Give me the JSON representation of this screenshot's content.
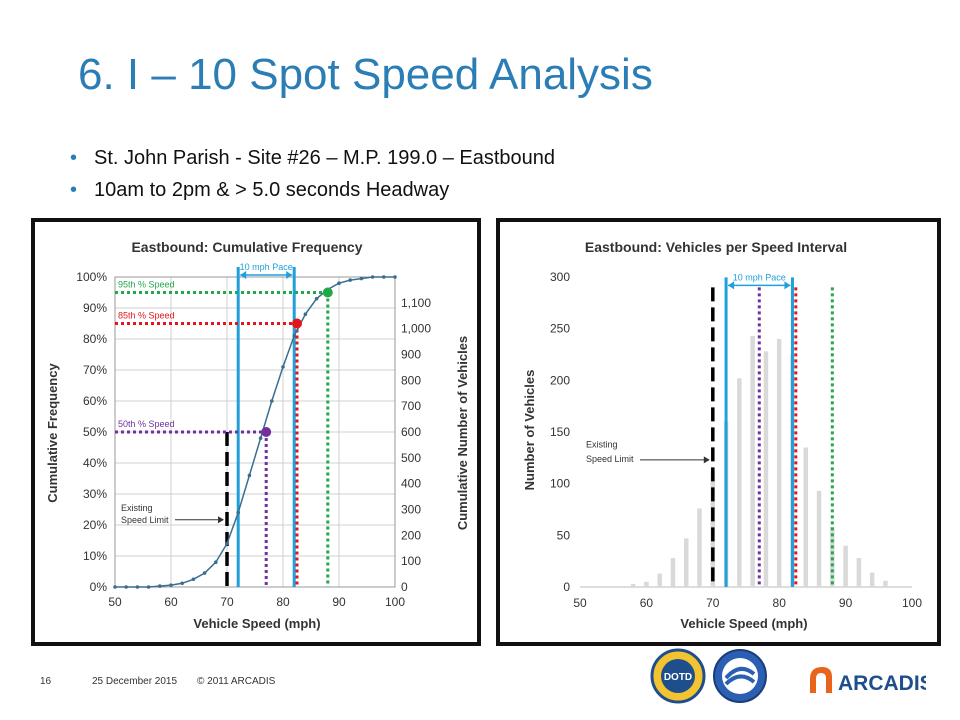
{
  "slide": {
    "title": "6. I – 10 Spot Speed Analysis",
    "bullets": [
      "St. John Parish - Site #26 – M.P. 199.0 – Eastbound",
      "10am to 2pm & > 5.0 seconds Headway"
    ],
    "footer": {
      "page_number": "16",
      "date": "25 December 2015",
      "copyright": "© 2011 ARCADIS"
    },
    "logos": {
      "arcadis": "ARCADIS",
      "dotd": "DOTD"
    }
  },
  "colors": {
    "title": "#2a7db5",
    "curve": "#3a6e8f",
    "pace": "#1fa0dc",
    "p95": "#22a84a",
    "p85": "#e4141b",
    "p50": "#7030a0",
    "limit": "#000000",
    "bars": "#d9d9d9",
    "arcadis_orange": "#e8641b",
    "arcadis_blue": "#1f4e8c"
  },
  "chart_data": [
    {
      "type": "line",
      "title": "Eastbound: Cumulative Frequency",
      "xlabel": "Vehicle Speed (mph)",
      "ylabel": "Cumulative Frequency",
      "y2label": "Cumulative Number of Vehicles",
      "xlim": [
        50,
        100
      ],
      "ylim": [
        0,
        100
      ],
      "y2lim": [
        0,
        1200
      ],
      "x_ticks": [
        "50",
        "60",
        "70",
        "80",
        "90",
        "100"
      ],
      "y_ticks": [
        "0%",
        "10%",
        "20%",
        "30%",
        "40%",
        "50%",
        "60%",
        "70%",
        "80%",
        "90%",
        "100%"
      ],
      "y2_ticks": [
        "0",
        "100",
        "200",
        "300",
        "400",
        "500",
        "600",
        "700",
        "800",
        "900",
        "1,000",
        "1,100"
      ],
      "grid": true,
      "series": [
        {
          "x": [
            50,
            52,
            54,
            56,
            58,
            60,
            62,
            64,
            66,
            68,
            70,
            72,
            74,
            76,
            78,
            80,
            82,
            84,
            86,
            88,
            90,
            92,
            94,
            96,
            98,
            100
          ],
          "y": [
            0,
            0,
            0,
            0,
            0.3,
            0.6,
            1.2,
            2.5,
            4.5,
            8,
            14,
            24,
            36,
            48,
            60,
            71,
            81,
            88,
            93,
            96,
            98,
            99,
            99.5,
            100,
            100,
            100
          ]
        }
      ],
      "annotations": [
        {
          "label": "95th % Speed",
          "percent": 95,
          "speed": 88,
          "color": "p95"
        },
        {
          "label": "85th % Speed",
          "percent": 85,
          "speed": 82.5,
          "color": "p85"
        },
        {
          "label": "50th % Speed",
          "percent": 50,
          "speed": 77,
          "color": "p50"
        },
        {
          "label": "10 mph Pace",
          "from": 72,
          "to": 82
        },
        {
          "label": "Existing Speed Limit",
          "speed": 70
        }
      ]
    },
    {
      "type": "bar",
      "title": "Eastbound: Vehicles per Speed Interval",
      "xlabel": "Vehicle Speed (mph)",
      "ylabel": "Number of Vehicles",
      "xlim": [
        50,
        100
      ],
      "ylim": [
        0,
        300
      ],
      "x_ticks": [
        "50",
        "60",
        "70",
        "80",
        "90",
        "100"
      ],
      "y_ticks": [
        "0",
        "50",
        "100",
        "150",
        "200",
        "250",
        "300"
      ],
      "grid": false,
      "x": [
        58,
        60,
        62,
        64,
        66,
        68,
        70,
        72,
        74,
        76,
        78,
        80,
        82,
        84,
        86,
        88,
        90,
        92,
        94,
        96
      ],
      "values": [
        3,
        5,
        13,
        28,
        47,
        76,
        112,
        160,
        202,
        243,
        228,
        240,
        225,
        135,
        93,
        58,
        40,
        28,
        14,
        6
      ],
      "annotations": [
        {
          "label": "10 mph Pace",
          "from": 72,
          "to": 82
        },
        {
          "label": "Existing Speed Limit",
          "speed": 70
        },
        {
          "speed": 77,
          "color": "p50"
        },
        {
          "speed": 82.5,
          "color": "p85"
        },
        {
          "speed": 88,
          "color": "p95"
        }
      ]
    }
  ]
}
